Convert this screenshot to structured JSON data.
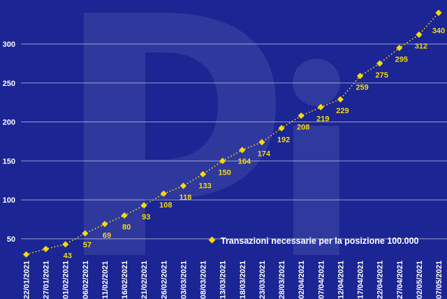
{
  "chart_data": {
    "type": "line",
    "title": "",
    "xlabel": "",
    "ylabel": "",
    "x": [
      "22/01/2021",
      "27/01/2021",
      "01/02/2021",
      "06/02/2021",
      "11/02/2021",
      "16/02/2021",
      "21/02/2021",
      "26/02/2021",
      "03/03/2021",
      "08/03/2021",
      "13/03/2021",
      "18/03/2021",
      "23/03/2021",
      "28/03/2021",
      "02/04/2021",
      "07/04/2021",
      "12/04/2021",
      "17/04/2021",
      "22/04/2021",
      "27/04/2021",
      "02/05/2021",
      "07/05/2021"
    ],
    "yticks": [
      50,
      100,
      150,
      200,
      250,
      300
    ],
    "ylim": [
      23,
      352
    ],
    "grid": true,
    "legend_position": "bottom-right",
    "series": [
      {
        "name": "Transazioni necessarie per la posizione 100.000",
        "color": "#f5d90a",
        "values": [
          30,
          37,
          43,
          57,
          69,
          80,
          93,
          108,
          118,
          133,
          150,
          164,
          174,
          192,
          208,
          219,
          229,
          259,
          275,
          295,
          312,
          340
        ],
        "labels": [
          "",
          "",
          "43",
          "57",
          "69",
          "80",
          "93",
          "108",
          "118",
          "133",
          "150",
          "164",
          "174",
          "192",
          "208",
          "219",
          "229",
          "259",
          "275",
          "295",
          "312",
          "340"
        ]
      }
    ]
  }
}
